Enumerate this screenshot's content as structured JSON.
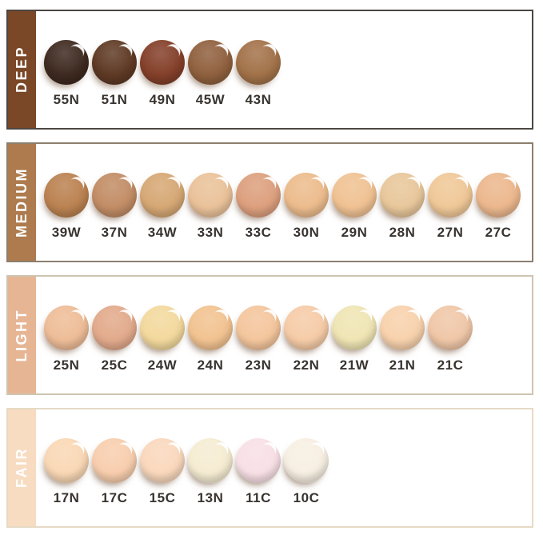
{
  "rows": [
    {
      "label": "DEEP",
      "sidebar_color": "#7a4727",
      "border_color": "#4c4742",
      "swatches": [
        {
          "code": "55N",
          "color": "#3e2a20"
        },
        {
          "code": "51N",
          "color": "#5f3a25"
        },
        {
          "code": "49N",
          "color": "#84402a"
        },
        {
          "code": "45W",
          "color": "#90613f"
        },
        {
          "code": "43N",
          "color": "#a3734a"
        }
      ]
    },
    {
      "label": "MEDIUM",
      "sidebar_color": "#ad7b4e",
      "border_color": "#8b7f6e",
      "swatches": [
        {
          "code": "39W",
          "color": "#bb8251"
        },
        {
          "code": "37N",
          "color": "#c28d66"
        },
        {
          "code": "34W",
          "color": "#d6a875"
        },
        {
          "code": "33N",
          "color": "#eac29a"
        },
        {
          "code": "33C",
          "color": "#dda07e"
        },
        {
          "code": "30N",
          "color": "#ecbc8d"
        },
        {
          "code": "29N",
          "color": "#f0c293"
        },
        {
          "code": "28N",
          "color": "#e8c79b"
        },
        {
          "code": "27N",
          "color": "#f0c898"
        },
        {
          "code": "27C",
          "color": "#ecb88e"
        }
      ]
    },
    {
      "label": "LIGHT",
      "sidebar_color": "#e6b594",
      "border_color": "#cfc4b0",
      "swatches": [
        {
          "code": "25N",
          "color": "#eebd98"
        },
        {
          "code": "25C",
          "color": "#e2aa8c"
        },
        {
          "code": "24W",
          "color": "#f3d99d"
        },
        {
          "code": "24N",
          "color": "#f2c391"
        },
        {
          "code": "23N",
          "color": "#f4c69d"
        },
        {
          "code": "22N",
          "color": "#f6cca8"
        },
        {
          "code": "21W",
          "color": "#efe5b4"
        },
        {
          "code": "21N",
          "color": "#f8d2ad"
        },
        {
          "code": "21C",
          "color": "#f0c7a8"
        }
      ]
    },
    {
      "label": "FAIR",
      "sidebar_color": "#f7dcc1",
      "border_color": "#e6dac4",
      "swatches": [
        {
          "code": "17N",
          "color": "#f9d8b5"
        },
        {
          "code": "17C",
          "color": "#f8ceae"
        },
        {
          "code": "15C",
          "color": "#fad8bd"
        },
        {
          "code": "13N",
          "color": "#f5ecd2"
        },
        {
          "code": "11C",
          "color": "#f8e0e6"
        },
        {
          "code": "10C",
          "color": "#f7efe2"
        }
      ]
    }
  ]
}
